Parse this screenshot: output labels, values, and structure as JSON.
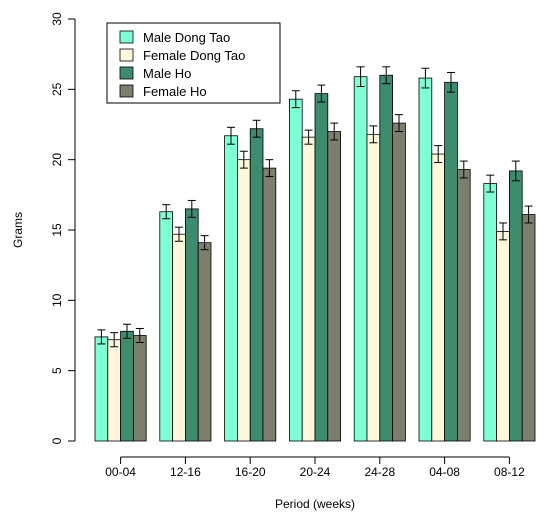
{
  "chart_data": {
    "type": "bar",
    "xlabel": "Period (weeks)",
    "ylabel": "Grams",
    "ylim": [
      0,
      30
    ],
    "yticks": [
      0,
      5,
      10,
      15,
      20,
      25,
      30
    ],
    "grid": false,
    "legend_position": "top-left",
    "categories": [
      "00-04",
      "12-16",
      "16-20",
      "20-24",
      "24-28",
      "04-08",
      "08-12"
    ],
    "series": [
      {
        "name": "Male Dong Tao",
        "color": "#7FFFD4",
        "values": [
          7.4,
          16.3,
          21.7,
          24.3,
          25.9,
          25.8,
          18.3
        ],
        "errors": [
          0.5,
          0.5,
          0.6,
          0.6,
          0.7,
          0.7,
          0.6
        ]
      },
      {
        "name": "Female Dong Tao",
        "color": "#FFF8DC",
        "values": [
          7.2,
          14.7,
          20.0,
          21.6,
          21.8,
          20.4,
          14.9
        ],
        "errors": [
          0.5,
          0.5,
          0.6,
          0.5,
          0.6,
          0.6,
          0.6
        ]
      },
      {
        "name": "Male Ho",
        "color": "#3E8C6E",
        "values": [
          7.8,
          16.5,
          22.2,
          24.7,
          26.0,
          25.5,
          19.2
        ],
        "errors": [
          0.5,
          0.6,
          0.6,
          0.6,
          0.6,
          0.7,
          0.7
        ]
      },
      {
        "name": "Female Ho",
        "color": "#7E7E6E",
        "values": [
          7.5,
          14.1,
          19.4,
          22.0,
          22.6,
          19.3,
          16.1
        ],
        "errors": [
          0.5,
          0.5,
          0.6,
          0.6,
          0.6,
          0.6,
          0.6
        ]
      }
    ]
  }
}
